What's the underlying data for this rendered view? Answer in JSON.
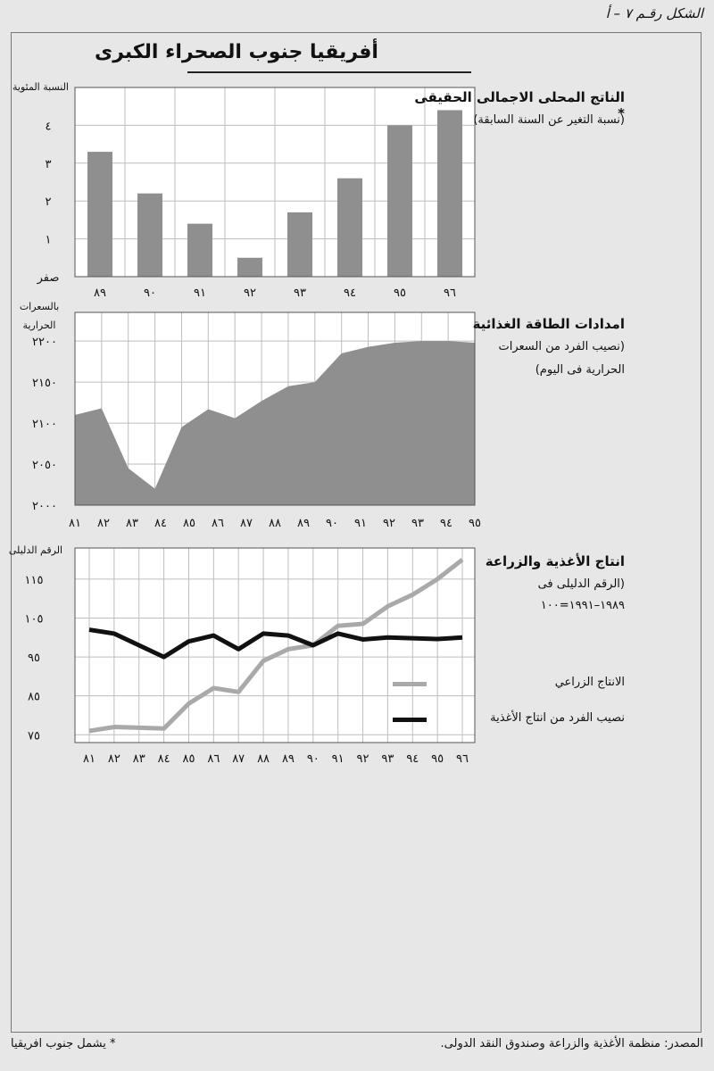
{
  "figure_label": "الشكل رقـم ٧ – أ",
  "main_title": "أفريقيا جنوب الصحراء الكبرى",
  "footer": {
    "source": "المصدر: منظمة الأغذية والزراعة وصندوق النقد الدولى.",
    "note": "* يشمل جنوب افريقيا"
  },
  "colors": {
    "bar": "#8f8f8f",
    "area": "#8f8f8f",
    "agri_line": "#a9a9a9",
    "food_line": "#111111",
    "grid": "#bdbdbd",
    "plot_bg": "#ffffff"
  },
  "chart_data": [
    {
      "type": "bar",
      "title": "الناتج المحلى الاجمالى الحقيقى *",
      "subtitle": "(نسبة التغير عن السنة السابقة)",
      "ylabel": "النسبة المئوية",
      "categories": [
        "٨٩",
        "٩٠",
        "٩١",
        "٩٢",
        "٩٣",
        "٩٤",
        "٩٥",
        "٩٦"
      ],
      "values": [
        3.3,
        2.2,
        1.4,
        0.5,
        1.7,
        2.6,
        4.0,
        4.4
      ],
      "ylim": [
        0,
        5
      ],
      "yticks": [
        0,
        1,
        2,
        3,
        4
      ],
      "ytick_labels": [
        "صفر",
        "١",
        "٢",
        "٣",
        "٤"
      ],
      "grid": true
    },
    {
      "type": "area",
      "title": "امدادات الطاقة الغذائية",
      "subtitle_lines": [
        "(نصيب الفرد من السعرات",
        "الحرارية فى اليوم)"
      ],
      "ylabel_lines": [
        "بالسعرات",
        "الحرارية"
      ],
      "x_labels": [
        "٨١",
        "٨٢",
        "٨٣",
        "٨٤",
        "٨٥",
        "٨٦",
        "٨٧",
        "٨٨",
        "٨٩",
        "٩٠",
        "٩١",
        "٩٢",
        "٩٣",
        "٩٤",
        "٩٥"
      ],
      "x": [
        1980,
        1981,
        1982,
        1983,
        1984,
        1985,
        1986,
        1987,
        1988,
        1989,
        1990,
        1991,
        1992,
        1993,
        1994,
        1995
      ],
      "values": [
        2110,
        2118,
        2045,
        2020,
        2095,
        2117,
        2106,
        2127,
        2145,
        2150,
        2185,
        2193,
        2198,
        2200,
        2200,
        2198
      ],
      "ylim": [
        2000,
        2235
      ],
      "yticks": [
        2000,
        2050,
        2100,
        2150,
        2200
      ],
      "ytick_labels": [
        "٢٠٠٠",
        "٢٠٥٠",
        "٢١٠٠",
        "٢١٥٠",
        "٢٢٠٠"
      ],
      "grid": true
    },
    {
      "type": "line",
      "title": "انتاج الأغذية والزراعة",
      "subtitle_lines": [
        "(الرقم الدليلى فى",
        "١٩٨٩–١٩٩١=١٠٠"
      ],
      "ylabel": "الرقم الدليلى",
      "x_labels": [
        "٨١",
        "٨٢",
        "٨٣",
        "٨٤",
        "٨٥",
        "٨٦",
        "٨٧",
        "٨٨",
        "٨٩",
        "٩٠",
        "٩١",
        "٩٢",
        "٩٣",
        "٩٤",
        "٩٥",
        "٩٦"
      ],
      "series": [
        {
          "name": "الانتاج الزراعي",
          "values": [
            76,
            77,
            76.8,
            76.6,
            83,
            87,
            86,
            94,
            97,
            98,
            103,
            103.5,
            108,
            111,
            115,
            120
          ]
        },
        {
          "name": "نصيب الفرد من انتاج الأغذية",
          "values": [
            102,
            101,
            98,
            95,
            99,
            100.5,
            97,
            101,
            100.5,
            98,
            101,
            99.5,
            100,
            99.8,
            99.6,
            100
          ]
        }
      ],
      "ylim": [
        73,
        123
      ],
      "yticks": [
        75,
        85,
        95,
        105,
        115
      ],
      "ytick_labels": [
        "٧٥",
        "٨٥",
        "٩٥",
        "١٠٥",
        "١١٥"
      ],
      "grid": true,
      "legend_position": "right"
    }
  ]
}
